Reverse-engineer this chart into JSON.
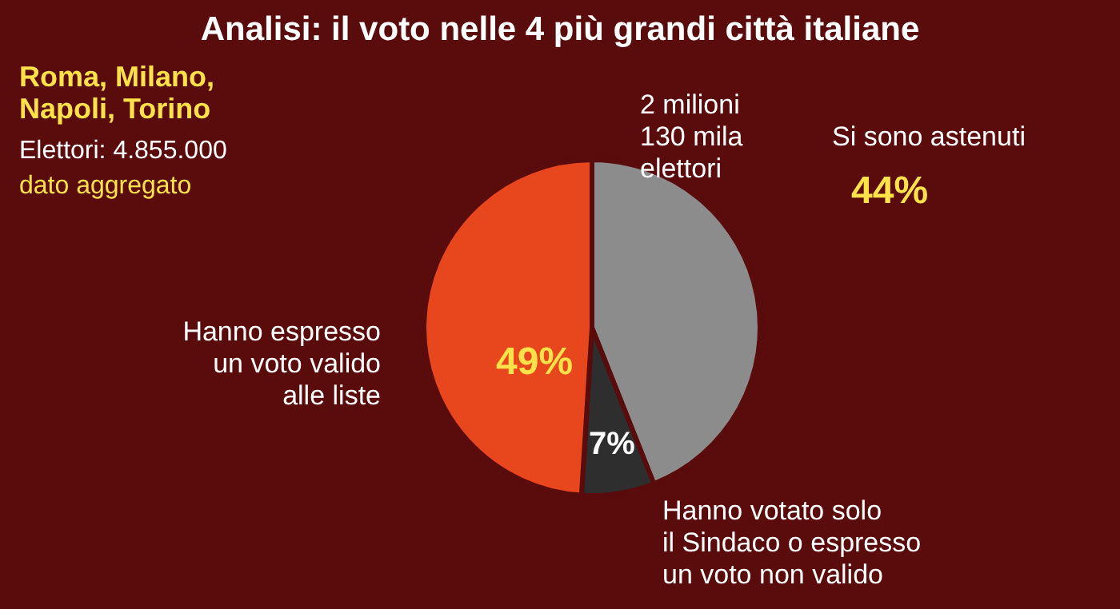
{
  "chart_data": {
    "type": "pie",
    "title": "Analisi: il voto nelle 4 più grandi città italiane",
    "categories": [
      "Si sono astenuti",
      "Hanno votato solo\nil Sindaco o espresso\nun voto non valido",
      "Hanno espresso\nun voto valido\nalle liste"
    ],
    "values": [
      44,
      7,
      49
    ],
    "value_labels": [
      "44%",
      "7%",
      "49%"
    ],
    "colors": [
      "#8c8c8c",
      "#2e2e2e",
      "#e8461c"
    ],
    "annotations": [
      "Roma, Milano,\nNapoli, Torino",
      "Elettori: 4.855.000",
      "dato aggregato",
      "2 milioni\n130 mila\nelettori"
    ]
  }
}
